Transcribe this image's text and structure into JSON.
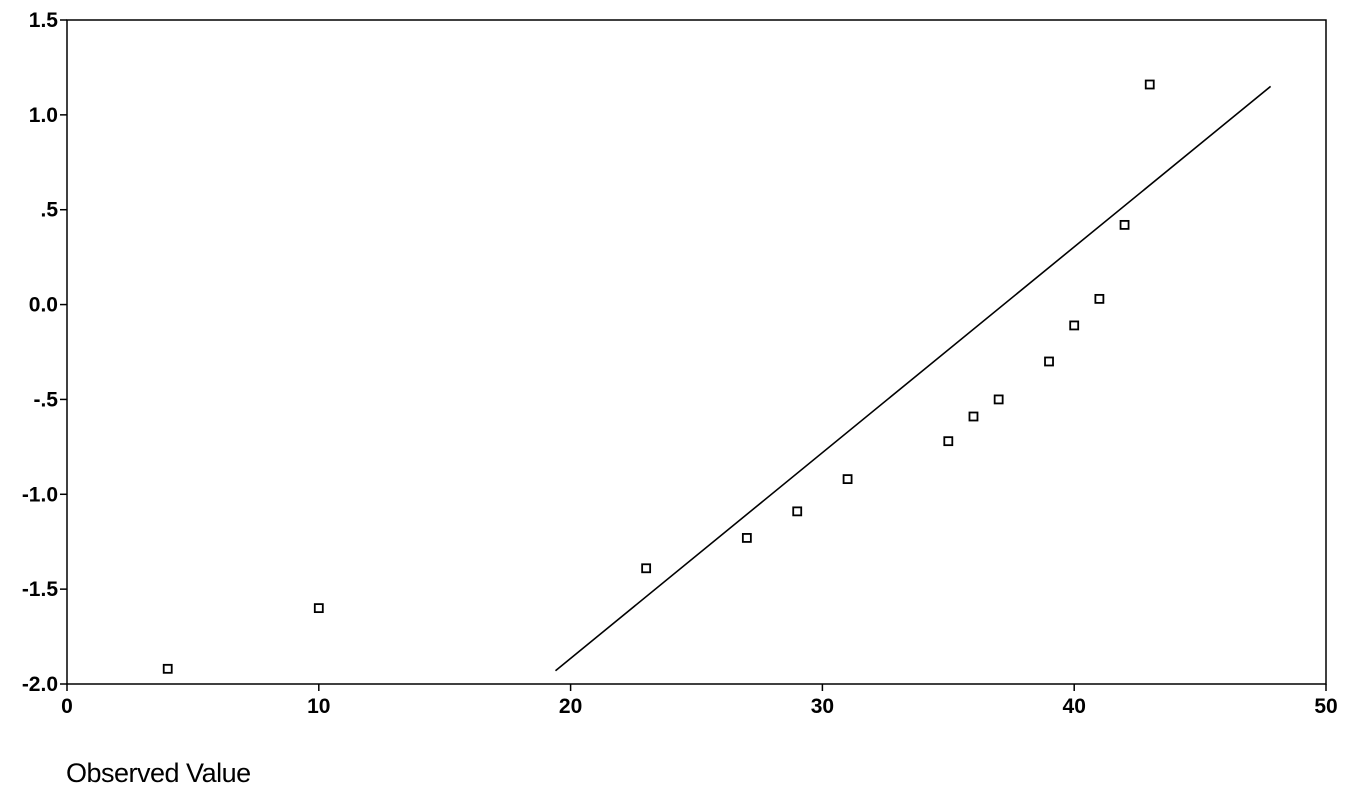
{
  "chart_data": {
    "type": "scatter",
    "title": "",
    "xlabel": "Observed Value",
    "ylabel": "",
    "xlim": [
      0,
      50
    ],
    "ylim": [
      -2.0,
      1.5
    ],
    "x_ticks": [
      0,
      10,
      20,
      30,
      40,
      50
    ],
    "x_tick_labels": [
      "0",
      "10",
      "20",
      "30",
      "40",
      "50"
    ],
    "y_ticks": [
      1.5,
      1.0,
      0.5,
      0.0,
      -0.5,
      -1.0,
      -1.5,
      -2.0
    ],
    "y_tick_labels": [
      "1.5",
      "1.0",
      ".5",
      "0.0",
      "-.5",
      "-1.0",
      "-1.5",
      "-2.0"
    ],
    "grid": false,
    "legend": "none",
    "series": [
      {
        "marker": "open-square",
        "points": [
          {
            "x": 4,
            "y": -1.92
          },
          {
            "x": 10,
            "y": -1.6
          },
          {
            "x": 23,
            "y": -1.39
          },
          {
            "x": 27,
            "y": -1.23
          },
          {
            "x": 29,
            "y": -1.09
          },
          {
            "x": 31,
            "y": -0.92
          },
          {
            "x": 35,
            "y": -0.72
          },
          {
            "x": 36,
            "y": -0.59
          },
          {
            "x": 37,
            "y": -0.5
          },
          {
            "x": 39,
            "y": -0.3
          },
          {
            "x": 40,
            "y": -0.11
          },
          {
            "x": 41,
            "y": 0.03
          },
          {
            "x": 42,
            "y": 0.42
          },
          {
            "x": 43,
            "y": 1.16
          }
        ]
      }
    ],
    "reference_line": {
      "from": [
        19.4,
        -1.93
      ],
      "to": [
        47.8,
        1.15
      ]
    }
  },
  "colors": {
    "axis": "#000000",
    "markers": "#000000",
    "line": "#000000",
    "background": "#ffffff"
  }
}
